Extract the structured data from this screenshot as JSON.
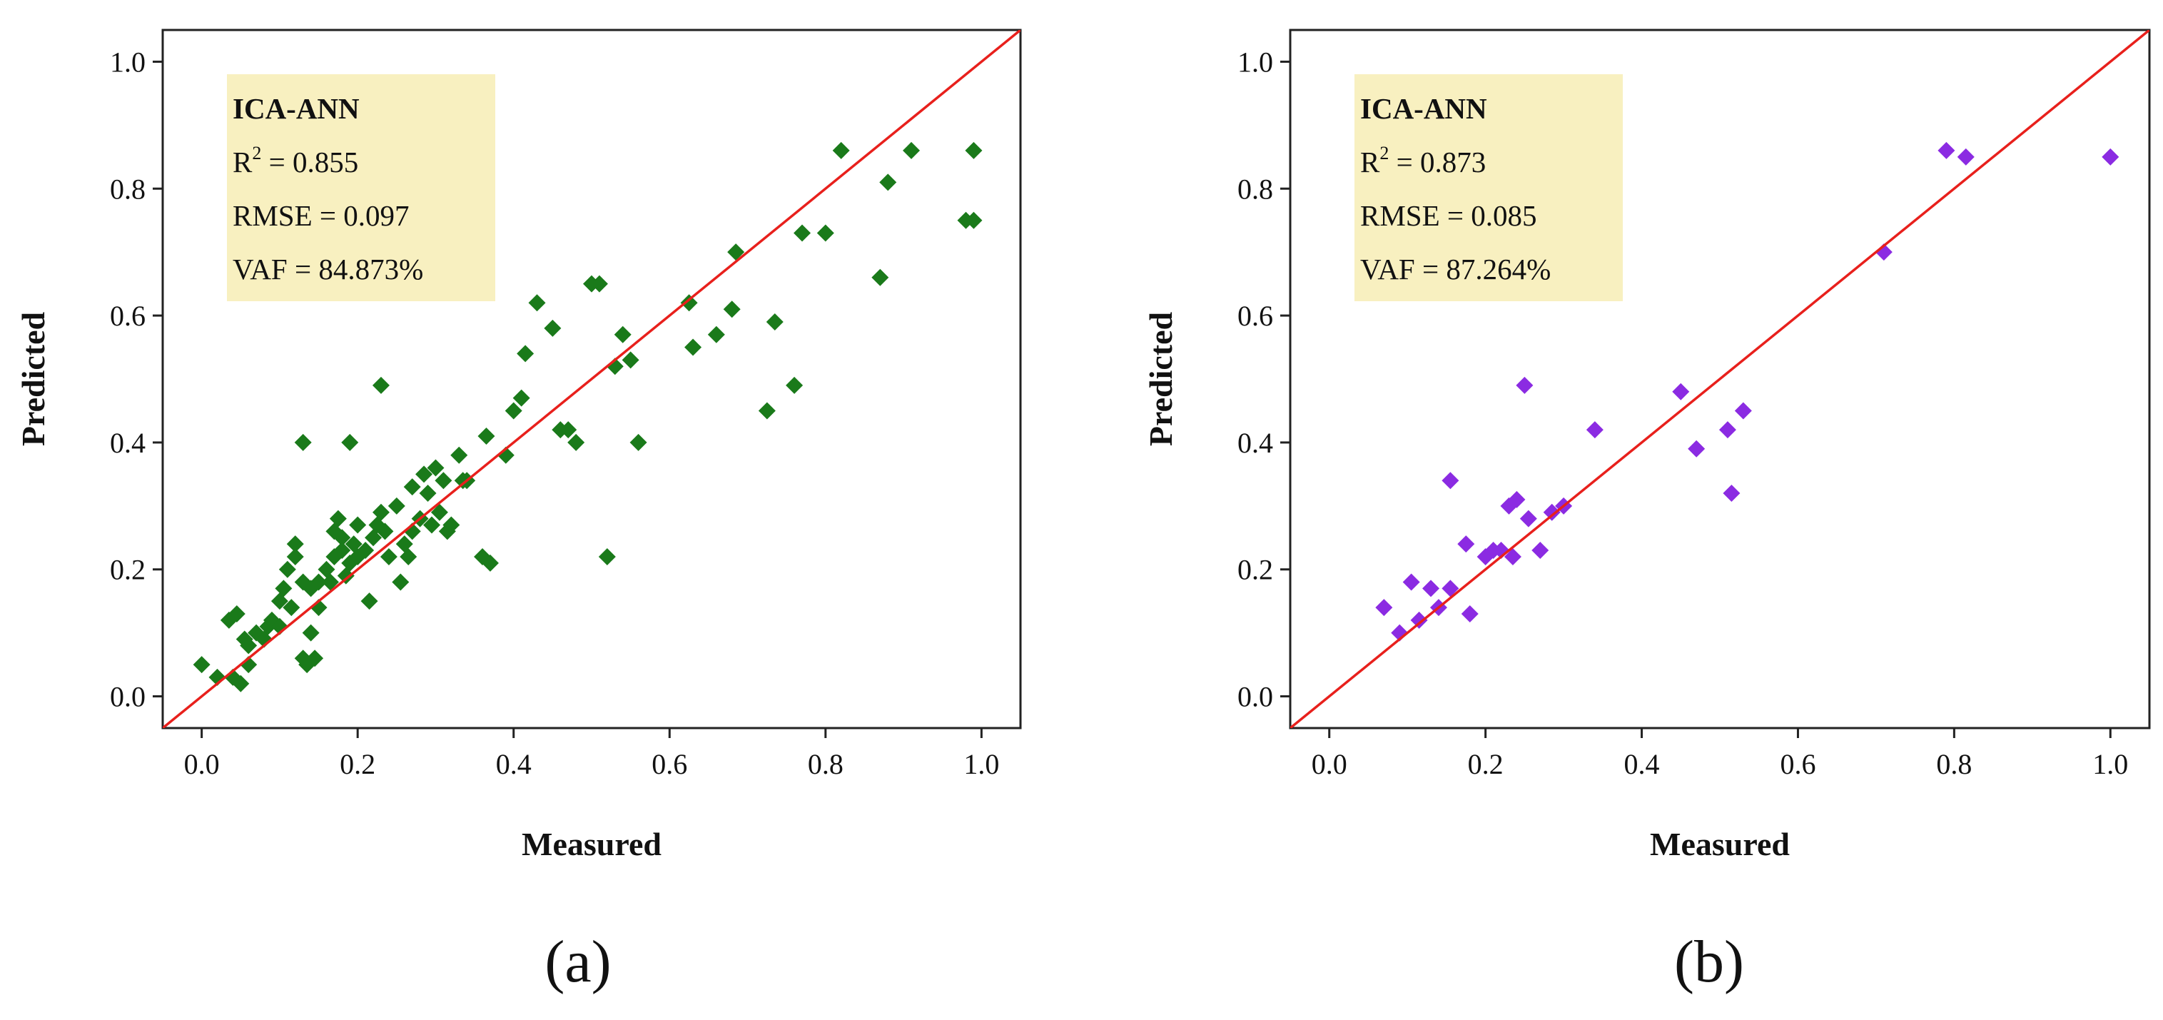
{
  "chart_data": [
    {
      "type": "scatter",
      "panel_label": "(a)",
      "xlabel": "Measured",
      "ylabel": "Predicted",
      "xlim": [
        -0.05,
        1.05
      ],
      "ylim": [
        -0.05,
        1.05
      ],
      "xticks": [
        0.0,
        0.2,
        0.4,
        0.6,
        0.8,
        1.0
      ],
      "yticks": [
        0.0,
        0.2,
        0.4,
        0.6,
        0.8,
        1.0
      ],
      "xtick_labels": [
        "0.0",
        "0.2",
        "0.4",
        "0.6",
        "0.8",
        "1.0"
      ],
      "ytick_labels": [
        "0.0",
        "0.2",
        "0.4",
        "0.6",
        "0.8",
        "1.0"
      ],
      "marker_color": "#1a7a1a",
      "line_color": "#e8201c",
      "box_color": "#f8f0c0",
      "fit_line": {
        "x": [
          -0.05,
          1.05
        ],
        "y": [
          -0.05,
          1.05
        ]
      },
      "stats": {
        "title": "ICA-ANN",
        "r2_prefix": "R",
        "r2_sup": "2",
        "r2_value": " = 0.855",
        "rmse": "RMSE = 0.097",
        "vaf": "VAF = 84.873%"
      },
      "points": [
        [
          0.0,
          0.05
        ],
        [
          0.02,
          0.03
        ],
        [
          0.04,
          0.03
        ],
        [
          0.05,
          0.02
        ],
        [
          0.06,
          0.05
        ],
        [
          0.035,
          0.12
        ],
        [
          0.045,
          0.13
        ],
        [
          0.055,
          0.09
        ],
        [
          0.06,
          0.08
        ],
        [
          0.07,
          0.1
        ],
        [
          0.08,
          0.09
        ],
        [
          0.085,
          0.11
        ],
        [
          0.09,
          0.12
        ],
        [
          0.1,
          0.11
        ],
        [
          0.1,
          0.15
        ],
        [
          0.105,
          0.17
        ],
        [
          0.11,
          0.2
        ],
        [
          0.115,
          0.14
        ],
        [
          0.12,
          0.22
        ],
        [
          0.12,
          0.24
        ],
        [
          0.13,
          0.18
        ],
        [
          0.13,
          0.06
        ],
        [
          0.135,
          0.05
        ],
        [
          0.14,
          0.17
        ],
        [
          0.14,
          0.1
        ],
        [
          0.15,
          0.18
        ],
        [
          0.15,
          0.14
        ],
        [
          0.16,
          0.2
        ],
        [
          0.165,
          0.18
        ],
        [
          0.17,
          0.22
        ],
        [
          0.17,
          0.26
        ],
        [
          0.175,
          0.28
        ],
        [
          0.18,
          0.23
        ],
        [
          0.18,
          0.25
        ],
        [
          0.185,
          0.19
        ],
        [
          0.19,
          0.21
        ],
        [
          0.195,
          0.24
        ],
        [
          0.2,
          0.22
        ],
        [
          0.2,
          0.27
        ],
        [
          0.21,
          0.23
        ],
        [
          0.215,
          0.15
        ],
        [
          0.22,
          0.25
        ],
        [
          0.225,
          0.27
        ],
        [
          0.23,
          0.29
        ],
        [
          0.235,
          0.26
        ],
        [
          0.24,
          0.22
        ],
        [
          0.25,
          0.3
        ],
        [
          0.255,
          0.18
        ],
        [
          0.26,
          0.24
        ],
        [
          0.265,
          0.22
        ],
        [
          0.27,
          0.26
        ],
        [
          0.27,
          0.33
        ],
        [
          0.28,
          0.28
        ],
        [
          0.285,
          0.35
        ],
        [
          0.29,
          0.32
        ],
        [
          0.295,
          0.27
        ],
        [
          0.3,
          0.36
        ],
        [
          0.305,
          0.29
        ],
        [
          0.31,
          0.34
        ],
        [
          0.315,
          0.26
        ],
        [
          0.32,
          0.27
        ],
        [
          0.33,
          0.38
        ],
        [
          0.335,
          0.34
        ],
        [
          0.34,
          0.34
        ],
        [
          0.36,
          0.22
        ],
        [
          0.365,
          0.41
        ],
        [
          0.37,
          0.21
        ],
        [
          0.39,
          0.38
        ],
        [
          0.4,
          0.45
        ],
        [
          0.41,
          0.47
        ],
        [
          0.415,
          0.54
        ],
        [
          0.43,
          0.62
        ],
        [
          0.45,
          0.58
        ],
        [
          0.46,
          0.42
        ],
        [
          0.47,
          0.42
        ],
        [
          0.48,
          0.4
        ],
        [
          0.5,
          0.65
        ],
        [
          0.51,
          0.65
        ],
        [
          0.52,
          0.22
        ],
        [
          0.53,
          0.52
        ],
        [
          0.54,
          0.57
        ],
        [
          0.55,
          0.53
        ],
        [
          0.56,
          0.4
        ],
        [
          0.625,
          0.62
        ],
        [
          0.63,
          0.55
        ],
        [
          0.66,
          0.57
        ],
        [
          0.68,
          0.61
        ],
        [
          0.685,
          0.7
        ],
        [
          0.725,
          0.45
        ],
        [
          0.735,
          0.59
        ],
        [
          0.76,
          0.49
        ],
        [
          0.77,
          0.73
        ],
        [
          0.8,
          0.73
        ],
        [
          0.82,
          0.86
        ],
        [
          0.87,
          0.66
        ],
        [
          0.88,
          0.81
        ],
        [
          0.91,
          0.86
        ],
        [
          0.98,
          0.75
        ],
        [
          0.99,
          0.75
        ],
        [
          0.99,
          0.86
        ],
        [
          0.23,
          0.49
        ],
        [
          0.13,
          0.4
        ],
        [
          0.19,
          0.4
        ],
        [
          0.145,
          0.06
        ]
      ]
    },
    {
      "type": "scatter",
      "panel_label": "(b)",
      "xlabel": "Measured",
      "ylabel": "Predicted",
      "xlim": [
        -0.05,
        1.05
      ],
      "ylim": [
        -0.05,
        1.05
      ],
      "xticks": [
        0.0,
        0.2,
        0.4,
        0.6,
        0.8,
        1.0
      ],
      "yticks": [
        0.0,
        0.2,
        0.4,
        0.6,
        0.8,
        1.0
      ],
      "xtick_labels": [
        "0.0",
        "0.2",
        "0.4",
        "0.6",
        "0.8",
        "1.0"
      ],
      "ytick_labels": [
        "0.0",
        "0.2",
        "0.4",
        "0.6",
        "0.8",
        "1.0"
      ],
      "marker_color": "#8b2be2",
      "line_color": "#e8201c",
      "box_color": "#f8f0c0",
      "fit_line": {
        "x": [
          -0.05,
          1.05
        ],
        "y": [
          -0.05,
          1.05
        ]
      },
      "stats": {
        "title": "ICA-ANN",
        "r2_prefix": "R",
        "r2_sup": "2",
        "r2_value": " = 0.873",
        "rmse": "RMSE = 0.085",
        "vaf": "VAF = 87.264%"
      },
      "points": [
        [
          0.07,
          0.14
        ],
        [
          0.09,
          0.1
        ],
        [
          0.105,
          0.18
        ],
        [
          0.115,
          0.12
        ],
        [
          0.13,
          0.17
        ],
        [
          0.14,
          0.14
        ],
        [
          0.155,
          0.34
        ],
        [
          0.155,
          0.17
        ],
        [
          0.175,
          0.24
        ],
        [
          0.18,
          0.13
        ],
        [
          0.2,
          0.22
        ],
        [
          0.21,
          0.23
        ],
        [
          0.22,
          0.23
        ],
        [
          0.23,
          0.3
        ],
        [
          0.235,
          0.22
        ],
        [
          0.24,
          0.31
        ],
        [
          0.25,
          0.49
        ],
        [
          0.255,
          0.28
        ],
        [
          0.27,
          0.23
        ],
        [
          0.285,
          0.29
        ],
        [
          0.3,
          0.3
        ],
        [
          0.34,
          0.42
        ],
        [
          0.45,
          0.48
        ],
        [
          0.47,
          0.39
        ],
        [
          0.51,
          0.42
        ],
        [
          0.515,
          0.32
        ],
        [
          0.53,
          0.45
        ],
        [
          0.71,
          0.7
        ],
        [
          0.79,
          0.86
        ],
        [
          0.815,
          0.85
        ],
        [
          1.0,
          0.85
        ]
      ]
    }
  ]
}
